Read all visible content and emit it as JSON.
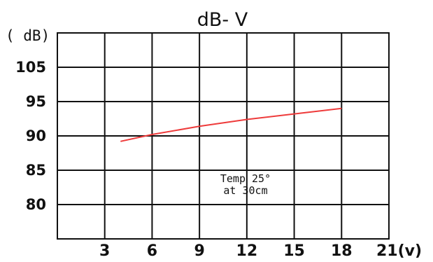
{
  "chart_data": {
    "type": "line",
    "title": "dB- V",
    "ylabel": "( dB)",
    "xlabel": "21(v)",
    "x_ticks": [
      "3",
      "6",
      "9",
      "12",
      "15",
      "18"
    ],
    "y_ticks": [
      "105",
      "95",
      "90",
      "85",
      "80"
    ],
    "grid": true,
    "annotation": [
      "Temp 25°",
      "at 30cm"
    ],
    "series": [
      {
        "color": "#ee3b3b",
        "x": [
          4,
          6,
          9,
          12,
          15,
          18
        ],
        "y": [
          89.2,
          90.2,
          91.4,
          92.4,
          93.2,
          94.0
        ]
      }
    ]
  }
}
